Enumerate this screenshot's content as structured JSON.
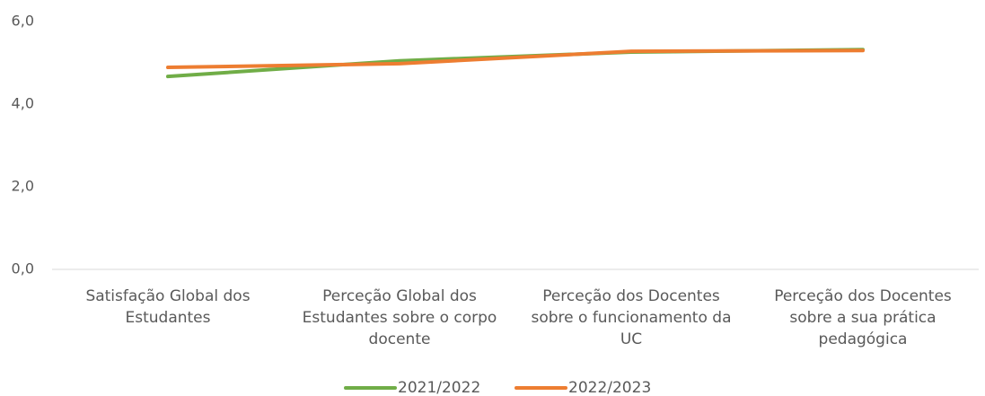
{
  "chart_data": {
    "type": "line",
    "categories": [
      "Satisfação Global dos Estudantes",
      "Perceção Global dos Estudantes sobre o corpo docente",
      "Perceção dos Docentes sobre o funcionamento da UC",
      "Perceção dos Docentes sobre a sua prática pedagógica"
    ],
    "series": [
      {
        "name": "2021/2022",
        "color": "#70ad47",
        "values": [
          4.67,
          5.05,
          5.26,
          5.32
        ]
      },
      {
        "name": "2022/2023",
        "color": "#ed7d31",
        "values": [
          4.89,
          4.98,
          5.28,
          5.3
        ]
      }
    ],
    "ylim": [
      0,
      6
    ],
    "yticks": [
      {
        "value": 0,
        "label": "0,0"
      },
      {
        "value": 2,
        "label": "2,0"
      },
      {
        "value": 4,
        "label": "4,0"
      },
      {
        "value": 6,
        "label": "6,0"
      }
    ],
    "grid": false,
    "legend": "bottom"
  }
}
